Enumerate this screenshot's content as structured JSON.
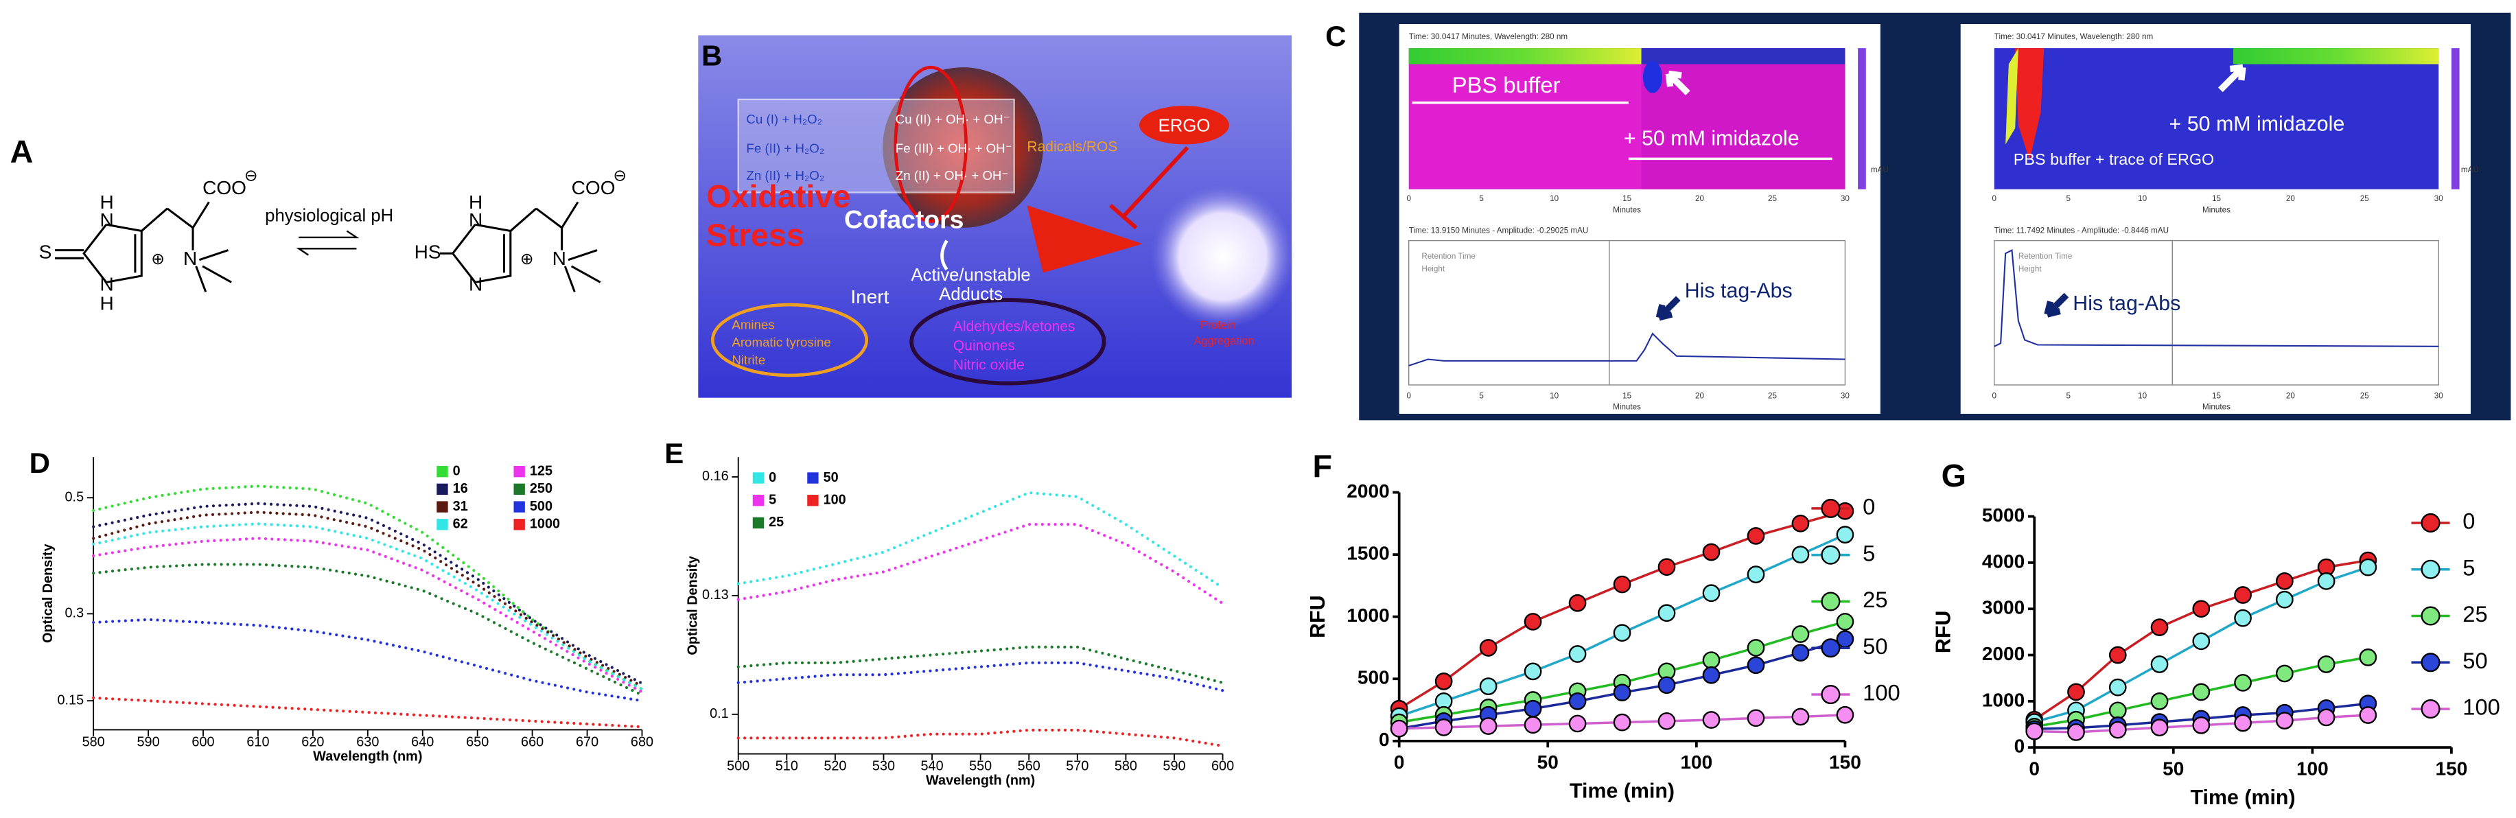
{
  "panels": {
    "A": {
      "label": "A",
      "condition": "physiological pH",
      "left_atoms": [
        "S",
        "N",
        "H",
        "N",
        "H",
        "COO",
        "⊖",
        "⊕",
        "N"
      ],
      "right_atoms": [
        "HS",
        "N",
        "H",
        "N",
        "COO",
        "⊖",
        "⊕",
        "N"
      ]
    },
    "B": {
      "label": "B",
      "reactants": [
        "Cu (I) + H₂O₂",
        "Fe (II) + H₂O₂",
        "Zn (II) + H₂O₂"
      ],
      "products": [
        "Cu (II) + OH· + OH⁻",
        "Fe (III) + OH· + OH⁻",
        "Zn (II) + OH· + OH⁻"
      ],
      "ros": "Radicals/ROS",
      "ergo": "ERGO",
      "stress": [
        "Oxidative",
        "Stress"
      ],
      "cofactors": "Cofactors",
      "inert": "Inert",
      "active": [
        "Active/unstable",
        "Adducts"
      ],
      "inert_items": [
        "Amines",
        "Aromatic tyrosine",
        "Nitrite"
      ],
      "active_items": [
        "Aldehydes/ketones",
        "Quinones",
        "Nitric oxide"
      ],
      "aggregation": [
        "Protein",
        "Aggregation"
      ]
    },
    "C": {
      "label": "C",
      "minute_ticks": [
        0,
        5,
        10,
        15,
        20,
        25,
        30
      ],
      "axis_label": "Minutes",
      "unit": "mAU",
      "left": {
        "header_top": "Time: 30.0417 Minutes, Wavelength: 280 nm",
        "header_bottom": "Time: 13.9150 Minutes - Amplitude: -0.29025 mAU",
        "legend": [
          "Retention Time",
          "Height"
        ],
        "buffer": "PBS buffer",
        "imidazole": "+ 50 mM  imidazole",
        "peak": "His tag-Abs"
      },
      "right": {
        "header_top": "Time: 30.0417 Minutes, Wavelength: 280 nm",
        "header_bottom": "Time: 11.7492 Minutes - Amplitude: -0.8446 mAU",
        "legend": [
          "Retention Time",
          "Height"
        ],
        "buffer": "PBS buffer + trace of ERGO",
        "imidazole": "+ 50 mM  imidazole",
        "peak": "His tag-Abs"
      }
    }
  },
  "chart_data": [
    {
      "type": "line",
      "label": "D",
      "line_style": "dotted",
      "markers": false,
      "x_label": "Wavelength (nm)",
      "y_label": "Optical Density",
      "x": [
        580,
        590,
        600,
        610,
        620,
        630,
        640,
        650,
        660,
        670,
        680
      ],
      "xlim": [
        580,
        680
      ],
      "xticks": [
        580,
        590,
        600,
        610,
        620,
        630,
        640,
        650,
        660,
        670,
        680
      ],
      "ylim": [
        0.1,
        0.57
      ],
      "yticks": [
        0.15,
        0.3,
        0.5
      ],
      "legend": "upper right",
      "series": [
        {
          "name": "0",
          "color": "#33dd33",
          "values": [
            0.478,
            0.5,
            0.515,
            0.52,
            0.515,
            0.49,
            0.44,
            0.37,
            0.29,
            0.22,
            0.17
          ]
        },
        {
          "name": "16",
          "color": "#1a1a5e",
          "values": [
            0.45,
            0.47,
            0.485,
            0.49,
            0.485,
            0.465,
            0.42,
            0.36,
            0.29,
            0.23,
            0.18
          ]
        },
        {
          "name": "31",
          "color": "#5a1a10",
          "values": [
            0.43,
            0.455,
            0.47,
            0.475,
            0.47,
            0.45,
            0.41,
            0.35,
            0.285,
            0.225,
            0.175
          ]
        },
        {
          "name": "62",
          "color": "#33e6e6",
          "values": [
            0.42,
            0.44,
            0.45,
            0.455,
            0.45,
            0.43,
            0.395,
            0.34,
            0.28,
            0.22,
            0.17
          ]
        },
        {
          "name": "125",
          "color": "#ee33ee",
          "values": [
            0.4,
            0.415,
            0.425,
            0.43,
            0.425,
            0.41,
            0.375,
            0.325,
            0.27,
            0.215,
            0.165
          ]
        },
        {
          "name": "250",
          "color": "#1a7a2a",
          "values": [
            0.37,
            0.38,
            0.385,
            0.385,
            0.38,
            0.365,
            0.34,
            0.3,
            0.25,
            0.205,
            0.16
          ]
        },
        {
          "name": "500",
          "color": "#2233dd",
          "values": [
            0.285,
            0.29,
            0.285,
            0.28,
            0.27,
            0.255,
            0.235,
            0.21,
            0.185,
            0.165,
            0.15
          ]
        },
        {
          "name": "1000",
          "color": "#ee2222",
          "values": [
            0.155,
            0.15,
            0.145,
            0.14,
            0.135,
            0.13,
            0.125,
            0.12,
            0.115,
            0.11,
            0.105
          ]
        }
      ]
    },
    {
      "type": "line",
      "label": "E",
      "line_style": "dotted",
      "markers": false,
      "x_label": "Wavelength (nm)",
      "y_label": "Optical Density",
      "x": [
        500,
        510,
        520,
        530,
        540,
        550,
        560,
        570,
        580,
        590,
        600
      ],
      "xlim": [
        500,
        600
      ],
      "xticks": [
        500,
        510,
        520,
        530,
        540,
        550,
        560,
        570,
        580,
        590,
        600
      ],
      "ylim": [
        0.09,
        0.165
      ],
      "yticks": [
        0.1,
        0.13,
        0.16
      ],
      "legend": "upper left",
      "series": [
        {
          "name": "0",
          "color": "#33e6e6",
          "values": [
            0.133,
            0.135,
            0.138,
            0.141,
            0.146,
            0.151,
            0.156,
            0.155,
            0.148,
            0.14,
            0.132
          ]
        },
        {
          "name": "5",
          "color": "#ee33ee",
          "values": [
            0.129,
            0.131,
            0.134,
            0.136,
            0.14,
            0.144,
            0.148,
            0.148,
            0.143,
            0.136,
            0.128
          ]
        },
        {
          "name": "25",
          "color": "#1a7a2a",
          "values": [
            0.112,
            0.113,
            0.113,
            0.114,
            0.115,
            0.116,
            0.117,
            0.117,
            0.114,
            0.111,
            0.108
          ]
        },
        {
          "name": "50",
          "color": "#2233dd",
          "values": [
            0.108,
            0.109,
            0.11,
            0.11,
            0.111,
            0.112,
            0.113,
            0.113,
            0.111,
            0.109,
            0.106
          ]
        },
        {
          "name": "100",
          "color": "#ee2222",
          "values": [
            0.094,
            0.094,
            0.094,
            0.094,
            0.095,
            0.095,
            0.096,
            0.096,
            0.095,
            0.094,
            0.092
          ]
        }
      ]
    },
    {
      "type": "line",
      "label": "F",
      "line_style": "solid",
      "markers": true,
      "x_label": "Time (min)",
      "y_label": "RFU",
      "x": [
        0,
        15,
        30,
        45,
        60,
        75,
        90,
        105,
        120,
        135,
        150
      ],
      "xlim": [
        0,
        150
      ],
      "xticks": [
        0,
        50,
        100,
        150
      ],
      "ylim": [
        0,
        2000
      ],
      "yticks": [
        0,
        500,
        1000,
        1500,
        2000
      ],
      "legend": "right",
      "series": [
        {
          "name": "0",
          "color": "#e8242a",
          "line": "#c81e24",
          "values": [
            260,
            480,
            750,
            960,
            1110,
            1260,
            1400,
            1520,
            1650,
            1750,
            1850
          ]
        },
        {
          "name": "5",
          "color": "#8ff0f0",
          "line": "#20a8c8",
          "values": [
            200,
            320,
            440,
            560,
            700,
            870,
            1030,
            1190,
            1340,
            1500,
            1660
          ]
        },
        {
          "name": "25",
          "color": "#7fe87f",
          "line": "#22bb22",
          "values": [
            150,
            210,
            270,
            330,
            400,
            470,
            560,
            650,
            750,
            860,
            960
          ]
        },
        {
          "name": "50",
          "color": "#2a45d8",
          "line": "#1a2a9a",
          "values": [
            100,
            160,
            210,
            260,
            320,
            390,
            450,
            530,
            610,
            710,
            820
          ]
        },
        {
          "name": "100",
          "color": "#f48ef0",
          "line": "#d060d0",
          "values": [
            100,
            110,
            120,
            130,
            140,
            150,
            160,
            170,
            185,
            195,
            210
          ]
        }
      ]
    },
    {
      "type": "line",
      "label": "G",
      "line_style": "solid",
      "markers": true,
      "x_label": "Time (min)",
      "y_label": "RFU",
      "x": [
        0,
        15,
        30,
        45,
        60,
        75,
        90,
        105,
        120
      ],
      "xlim": [
        0,
        150
      ],
      "xticks": [
        0,
        50,
        100,
        150
      ],
      "ylim": [
        0,
        5000
      ],
      "yticks": [
        0,
        1000,
        2000,
        3000,
        4000,
        5000
      ],
      "legend": "right",
      "series": [
        {
          "name": "0",
          "color": "#e8242a",
          "line": "#c81e24",
          "values": [
            600,
            1200,
            2000,
            2600,
            3000,
            3300,
            3600,
            3900,
            4050
          ]
        },
        {
          "name": "5",
          "color": "#8ff0f0",
          "line": "#20a8c8",
          "values": [
            550,
            800,
            1300,
            1800,
            2300,
            2800,
            3200,
            3600,
            3900
          ]
        },
        {
          "name": "25",
          "color": "#7fe87f",
          "line": "#22bb22",
          "values": [
            450,
            600,
            800,
            1000,
            1200,
            1400,
            1600,
            1800,
            1950
          ]
        },
        {
          "name": "50",
          "color": "#2a45d8",
          "line": "#1a2a9a",
          "values": [
            400,
            420,
            480,
            550,
            620,
            700,
            750,
            850,
            950
          ]
        },
        {
          "name": "100",
          "color": "#f48ef0",
          "line": "#d060d0",
          "values": [
            350,
            330,
            380,
            430,
            480,
            530,
            580,
            650,
            700
          ]
        }
      ]
    }
  ]
}
